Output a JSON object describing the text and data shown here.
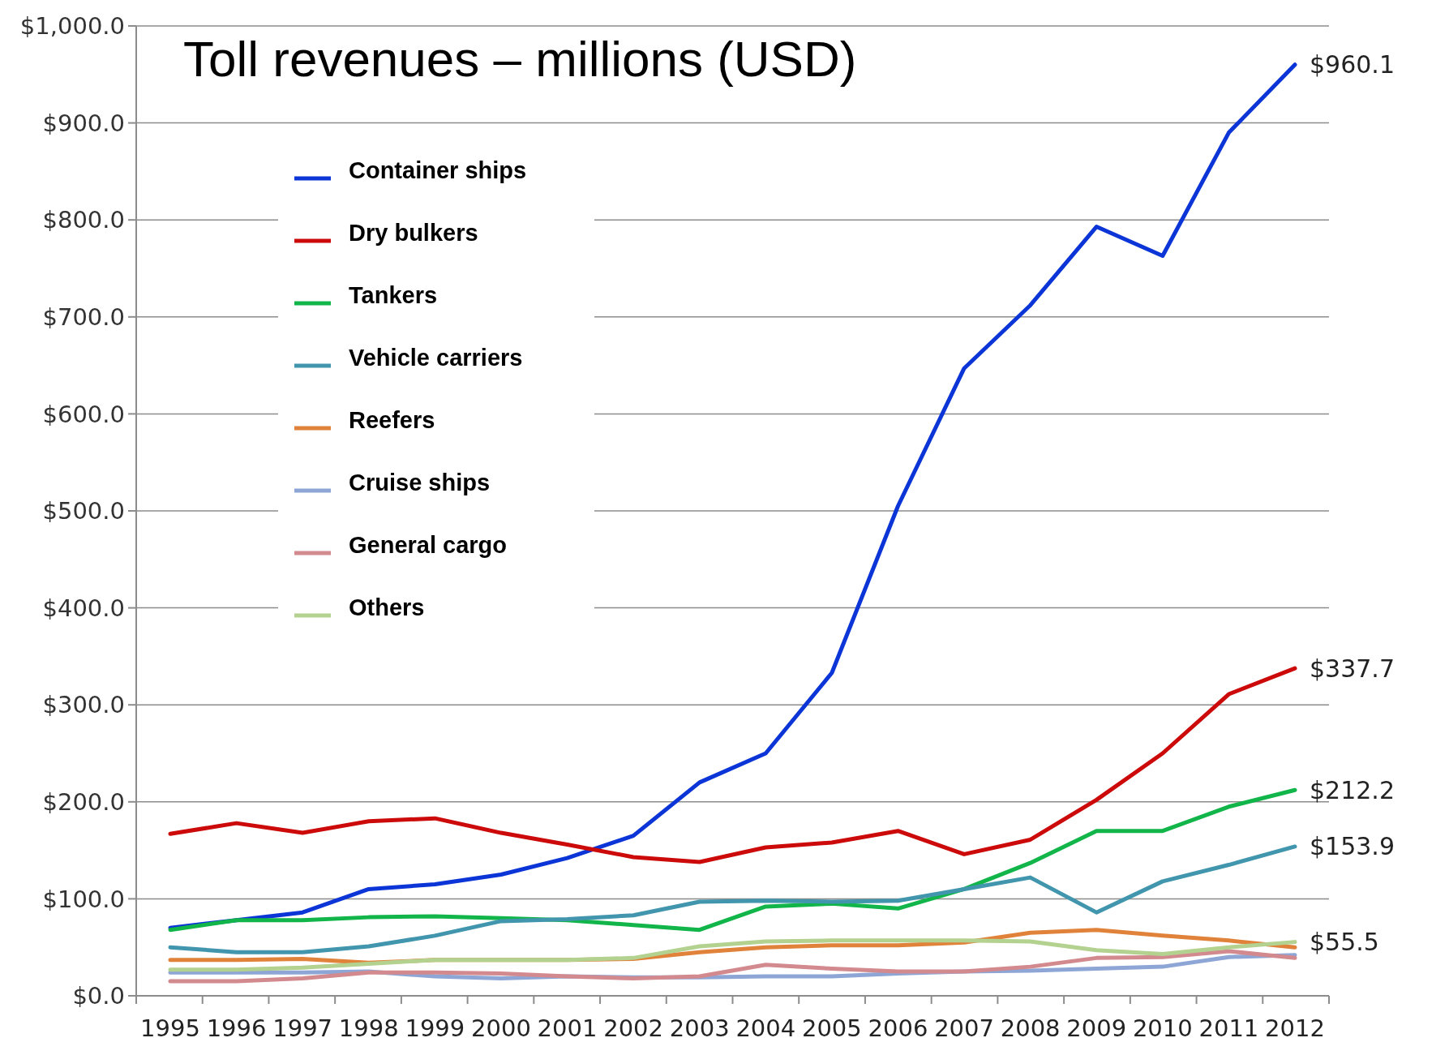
{
  "chart_data": {
    "type": "line",
    "title": "Toll revenues – millions (USD)",
    "categories": [
      "1995",
      "1996",
      "1997",
      "1998",
      "1999",
      "2000",
      "2001",
      "2002",
      "2003",
      "2004",
      "2005",
      "2006",
      "2007",
      "2008",
      "2009",
      "2010",
      "2011",
      "2012"
    ],
    "series": [
      {
        "name": "Container ships",
        "color": "#0b35d6",
        "values": [
          70,
          78,
          86,
          110,
          115,
          125,
          142,
          165,
          220,
          250,
          333,
          505,
          647,
          712,
          793,
          763,
          890,
          960.1
        ],
        "value_labels": [
          null,
          null,
          null,
          null,
          null,
          null,
          null,
          null,
          null,
          null,
          null,
          null,
          null,
          null,
          null,
          null,
          null,
          "$960.1"
        ]
      },
      {
        "name": "Dry bulkers",
        "color": "#cc0a0a",
        "values": [
          167,
          178,
          168,
          180,
          183,
          168,
          156,
          143,
          138,
          153,
          158,
          170,
          146,
          161,
          202,
          250,
          311,
          337.7
        ],
        "value_labels": [
          null,
          null,
          null,
          null,
          null,
          null,
          null,
          null,
          null,
          null,
          null,
          null,
          null,
          null,
          null,
          null,
          null,
          "$337.7"
        ]
      },
      {
        "name": "Tankers",
        "color": "#12b54a",
        "values": [
          68,
          78,
          78,
          81,
          82,
          80,
          78,
          73,
          68,
          92,
          95,
          90,
          110,
          137,
          170,
          170,
          195,
          212.2
        ],
        "value_labels": [
          null,
          null,
          null,
          null,
          null,
          null,
          null,
          null,
          null,
          null,
          null,
          null,
          null,
          null,
          null,
          null,
          null,
          "$212.2"
        ]
      },
      {
        "name": "Vehicle carriers",
        "color": "#4196ad",
        "values": [
          50,
          45,
          45,
          51,
          62,
          77,
          79,
          83,
          97,
          98,
          97,
          98,
          110,
          122,
          86,
          118,
          135,
          153.9
        ],
        "value_labels": [
          null,
          null,
          null,
          null,
          null,
          null,
          null,
          null,
          null,
          null,
          null,
          null,
          null,
          null,
          null,
          null,
          null,
          "$153.9"
        ]
      },
      {
        "name": "Reefers",
        "color": "#e0823a",
        "values": [
          37,
          37,
          38,
          34,
          37,
          37,
          37,
          38,
          45,
          50,
          52,
          52,
          55,
          65,
          68,
          62,
          57,
          50
        ]
      },
      {
        "name": "Cruise ships",
        "color": "#8ea6d6",
        "values": [
          24,
          24,
          24,
          25,
          20,
          18,
          20,
          19,
          19,
          20,
          20,
          23,
          25,
          26,
          28,
          30,
          40,
          42
        ]
      },
      {
        "name": "General cargo",
        "color": "#d38a8f",
        "values": [
          15,
          15,
          18,
          24,
          24,
          23,
          20,
          18,
          20,
          32,
          28,
          25,
          25,
          30,
          39,
          40,
          46,
          39
        ]
      },
      {
        "name": "Others",
        "color": "#b3d18f",
        "values": [
          27,
          27,
          29,
          33,
          37,
          37,
          37,
          39,
          51,
          56,
          57,
          57,
          57,
          56,
          47,
          43,
          50,
          55.5
        ],
        "value_labels": [
          null,
          null,
          null,
          null,
          null,
          null,
          null,
          null,
          null,
          null,
          null,
          null,
          null,
          null,
          null,
          null,
          null,
          "$55.5"
        ]
      }
    ],
    "ylim": [
      0,
      1000
    ],
    "yticks": [
      {
        "value": 0,
        "label": "$0.0"
      },
      {
        "value": 100,
        "label": "$100.0"
      },
      {
        "value": 200,
        "label": "$200.0"
      },
      {
        "value": 300,
        "label": "$300.0"
      },
      {
        "value": 400,
        "label": "$400.0"
      },
      {
        "value": 500,
        "label": "$500.0"
      },
      {
        "value": 600,
        "label": "$600.0"
      },
      {
        "value": 700,
        "label": "$700.0"
      },
      {
        "value": 800,
        "label": "$800.0"
      },
      {
        "value": 900,
        "label": "$900.0"
      },
      {
        "value": 1000,
        "label": "$1,000.0"
      }
    ],
    "grid": "y",
    "legend": "top left",
    "marker": "none",
    "line_style": "solid"
  }
}
